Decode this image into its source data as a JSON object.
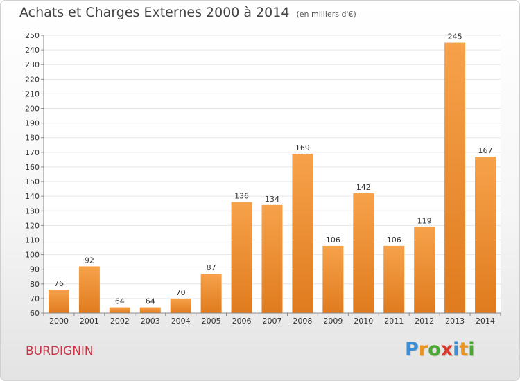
{
  "header": {
    "title": "Achats et Charges Externes 2000 à 2014",
    "unit": "(en milliers d'€)"
  },
  "footer": {
    "town": "BURDIGNIN",
    "logo_letters": [
      "P",
      "r",
      "o",
      "x",
      "i",
      "t",
      "i"
    ],
    "logo_colors": [
      "#3a8fd6",
      "#e8941e",
      "#4aa832",
      "#d8392b",
      "#3a8fd6",
      "#e8941e",
      "#4aa832"
    ]
  },
  "colors": {
    "bar_light": "#f6a24a",
    "bar_dark": "#e07b1f",
    "grid": "#e6e6e6",
    "axis": "#888888"
  },
  "chart_data": {
    "type": "bar",
    "title": "Achats et Charges Externes 2000 à 2014",
    "categories": [
      "2000",
      "2001",
      "2002",
      "2003",
      "2004",
      "2005",
      "2006",
      "2007",
      "2008",
      "2009",
      "2010",
      "2011",
      "2012",
      "2013",
      "2014"
    ],
    "values": [
      76,
      92,
      64,
      64,
      70,
      87,
      136,
      134,
      169,
      106,
      142,
      106,
      119,
      245,
      167
    ],
    "xlabel": "",
    "ylabel": "",
    "ylim": [
      60,
      250
    ],
    "ytick_step": 10,
    "grid": true,
    "data_labels": true
  }
}
